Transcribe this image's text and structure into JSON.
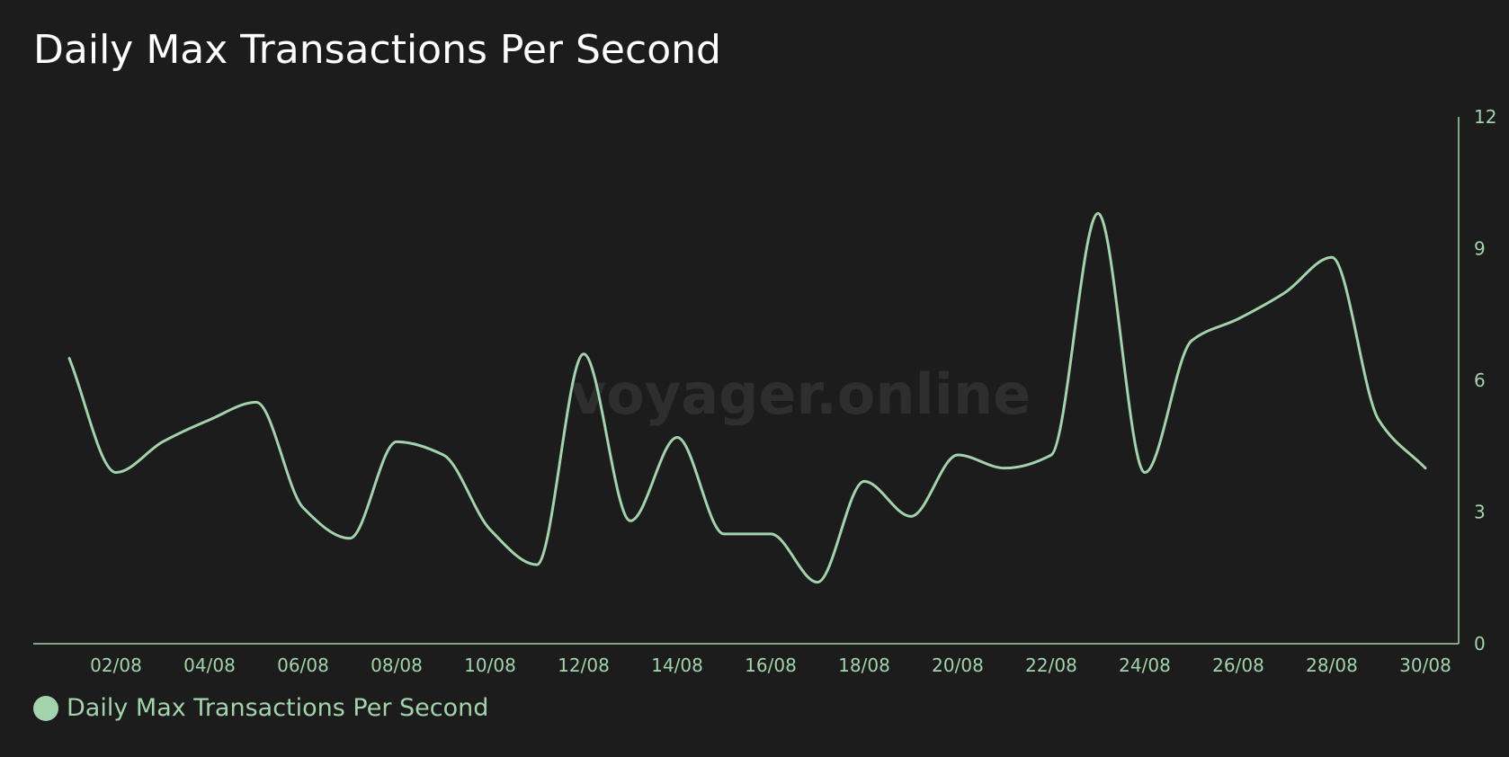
{
  "chart_data": {
    "type": "line",
    "title": "Daily Max Transactions Per Second",
    "watermark": "voyager.online",
    "x": [
      "01/08",
      "02/08",
      "03/08",
      "04/08",
      "05/08",
      "06/08",
      "07/08",
      "08/08",
      "09/08",
      "10/08",
      "11/08",
      "12/08",
      "13/08",
      "14/08",
      "15/08",
      "16/08",
      "17/08",
      "18/08",
      "19/08",
      "20/08",
      "21/08",
      "22/08",
      "23/08",
      "24/08",
      "25/08",
      "26/08",
      "27/08",
      "28/08",
      "29/08",
      "30/08"
    ],
    "x_tick_labels": [
      "02/08",
      "04/08",
      "06/08",
      "08/08",
      "10/08",
      "12/08",
      "14/08",
      "16/08",
      "18/08",
      "20/08",
      "22/08",
      "24/08",
      "26/08",
      "28/08",
      "30/08"
    ],
    "y_ticks": [
      0,
      3,
      6,
      9,
      12
    ],
    "ylim": [
      0,
      12
    ],
    "series": [
      {
        "name": "Daily Max Transactions Per Second",
        "color": "#a3d3ad",
        "values": [
          6.5,
          3.9,
          4.6,
          5.1,
          5.5,
          3.1,
          2.4,
          4.6,
          4.3,
          2.6,
          1.8,
          6.6,
          2.8,
          4.7,
          2.5,
          2.5,
          1.4,
          3.7,
          2.9,
          4.3,
          4.0,
          4.3,
          9.8,
          3.9,
          6.9,
          7.4,
          8.0,
          8.8,
          5.1,
          4.0
        ]
      }
    ],
    "legend_position": "bottom-left",
    "grid": false,
    "y_axis_side": "right",
    "axis_color": "#a3d3ad",
    "background": "#1c1c1c"
  }
}
